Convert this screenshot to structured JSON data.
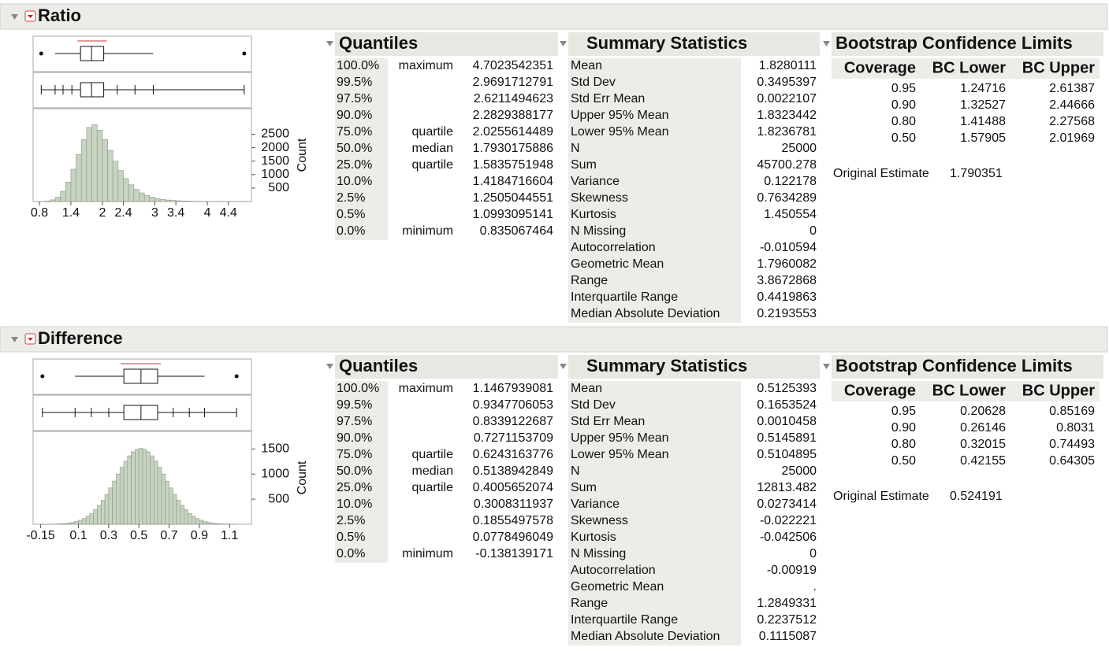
{
  "sections": [
    {
      "title": "Ratio",
      "histogram": {
        "type": "histogram",
        "bins": [
          0.8,
          0.9,
          1.0,
          1.1,
          1.2,
          1.3,
          1.4,
          1.5,
          1.6,
          1.7,
          1.8,
          1.9,
          2.0,
          2.1,
          2.2,
          2.3,
          2.4,
          2.5,
          2.6,
          2.7,
          2.8,
          2.9,
          3.0,
          3.1,
          3.2,
          3.3,
          3.4,
          3.5,
          3.6,
          3.7,
          3.8,
          3.9,
          4.0,
          4.1,
          4.2,
          4.3,
          4.4,
          4.5,
          4.6,
          4.7,
          4.8
        ],
        "counts": [
          5,
          20,
          60,
          160,
          380,
          720,
          1200,
          1750,
          2300,
          2750,
          2850,
          2650,
          2300,
          1900,
          1500,
          1150,
          850,
          620,
          450,
          320,
          230,
          160,
          110,
          80,
          55,
          40,
          28,
          20,
          14,
          10,
          7,
          5,
          4,
          3,
          2,
          2,
          1,
          1,
          1,
          1
        ],
        "xlim": [
          0.68,
          4.84
        ],
        "xticks": [
          0.8,
          1.4,
          2,
          2.4,
          3,
          3.4,
          4,
          4.4
        ],
        "ylim": [
          0,
          3450
        ],
        "yticks": [
          500,
          1000,
          1500,
          2000,
          2500
        ],
        "ylabel": "Count",
        "color": "#c8d3c1"
      },
      "quantiles": {
        "title": "Quantiles",
        "rows": [
          {
            "pct": "100.0%",
            "label": "maximum",
            "value": "4.7023542351"
          },
          {
            "pct": "99.5%",
            "value": "2.9691712791"
          },
          {
            "pct": "97.5%",
            "value": "2.6211494623"
          },
          {
            "pct": "90.0%",
            "value": "2.2829388177"
          },
          {
            "pct": "75.0%",
            "label": "quartile",
            "value": "2.0255614489"
          },
          {
            "pct": "50.0%",
            "label": "median",
            "value": "1.7930175886"
          },
          {
            "pct": "25.0%",
            "label": "quartile",
            "value": "1.5835751948"
          },
          {
            "pct": "10.0%",
            "value": "1.4184716604"
          },
          {
            "pct": "2.5%",
            "value": "1.2505044551"
          },
          {
            "pct": "0.5%",
            "value": "1.0993095141"
          },
          {
            "pct": "0.0%",
            "label": "minimum",
            "value": "0.835067464"
          }
        ]
      },
      "summary": {
        "title": "Summary Statistics",
        "rows": [
          [
            "Mean",
            "1.8280111"
          ],
          [
            "Std Dev",
            "0.3495397"
          ],
          [
            "Std Err Mean",
            "0.0022107"
          ],
          [
            "Upper 95% Mean",
            "1.8323442"
          ],
          [
            "Lower 95% Mean",
            "1.8236781"
          ],
          [
            "N",
            "25000"
          ],
          [
            "Sum",
            "45700.278"
          ],
          [
            "Variance",
            "0.122178"
          ],
          [
            "Skewness",
            "0.7634289"
          ],
          [
            "Kurtosis",
            "1.450554"
          ],
          [
            "N Missing",
            "0"
          ],
          [
            "Autocorrelation",
            "-0.010594"
          ],
          [
            "Geometric Mean",
            "1.7960082"
          ],
          [
            "Range",
            "3.8672868"
          ],
          [
            "Interquartile Range",
            "0.4419863"
          ],
          [
            "Median Absolute Deviation",
            "0.2193553"
          ]
        ]
      },
      "bootstrap": {
        "title": "Bootstrap Confidence Limits",
        "headers": [
          "Coverage",
          "BC Lower",
          "BC Upper"
        ],
        "rows": [
          [
            "0.95",
            "1.24716",
            "2.61387"
          ],
          [
            "0.90",
            "1.32527",
            "2.44666"
          ],
          [
            "0.80",
            "1.41488",
            "2.27568"
          ],
          [
            "0.50",
            "1.57905",
            "2.01969"
          ]
        ],
        "original_estimate": [
          "Original Estimate",
          "1.790351"
        ]
      }
    },
    {
      "title": "Difference",
      "histogram": {
        "type": "histogram",
        "bins": [
          -0.15,
          -0.125,
          -0.1,
          -0.075,
          -0.05,
          -0.025,
          0,
          0.025,
          0.05,
          0.075,
          0.1,
          0.125,
          0.15,
          0.175,
          0.2,
          0.225,
          0.25,
          0.275,
          0.3,
          0.325,
          0.35,
          0.375,
          0.4,
          0.425,
          0.45,
          0.475,
          0.5,
          0.525,
          0.55,
          0.575,
          0.6,
          0.625,
          0.65,
          0.675,
          0.7,
          0.725,
          0.75,
          0.775,
          0.8,
          0.825,
          0.85,
          0.875,
          0.9,
          0.925,
          0.95,
          0.975,
          1.0,
          1.025,
          1.05,
          1.075,
          1.1,
          1.125,
          1.15
        ],
        "counts": [
          1,
          1,
          2,
          4,
          6,
          10,
          15,
          24,
          37,
          54,
          80,
          114,
          159,
          217,
          290,
          376,
          479,
          596,
          724,
          860,
          1000,
          1134,
          1257,
          1363,
          1443,
          1494,
          1511,
          1494,
          1443,
          1363,
          1257,
          1134,
          1000,
          860,
          724,
          596,
          479,
          376,
          290,
          217,
          159,
          114,
          80,
          54,
          37,
          24,
          15,
          10,
          6,
          4,
          2,
          1
        ],
        "xlim": [
          -0.2,
          1.245
        ],
        "xticks": [
          -0.15,
          0.1,
          0.3,
          0.5,
          0.7,
          0.9,
          1.1
        ],
        "ylim": [
          0,
          1850
        ],
        "yticks": [
          500,
          1000,
          1500
        ],
        "ylabel": "Count",
        "color": "#c8d3c1"
      },
      "quantiles": {
        "title": "Quantiles",
        "rows": [
          {
            "pct": "100.0%",
            "label": "maximum",
            "value": "1.1467939081"
          },
          {
            "pct": "99.5%",
            "value": "0.9347706053"
          },
          {
            "pct": "97.5%",
            "value": "0.8339122687"
          },
          {
            "pct": "90.0%",
            "value": "0.7271153709"
          },
          {
            "pct": "75.0%",
            "label": "quartile",
            "value": "0.6243163776"
          },
          {
            "pct": "50.0%",
            "label": "median",
            "value": "0.5138942849"
          },
          {
            "pct": "25.0%",
            "label": "quartile",
            "value": "0.4005652074"
          },
          {
            "pct": "10.0%",
            "value": "0.3008311937"
          },
          {
            "pct": "2.5%",
            "value": "0.1855497578"
          },
          {
            "pct": "0.5%",
            "value": "0.0778496049"
          },
          {
            "pct": "0.0%",
            "label": "minimum",
            "value": "-0.138139171"
          }
        ]
      },
      "summary": {
        "title": "Summary Statistics",
        "rows": [
          [
            "Mean",
            "0.5125393"
          ],
          [
            "Std Dev",
            "0.1653524"
          ],
          [
            "Std Err Mean",
            "0.0010458"
          ],
          [
            "Upper 95% Mean",
            "0.5145891"
          ],
          [
            "Lower 95% Mean",
            "0.5104895"
          ],
          [
            "N",
            "25000"
          ],
          [
            "Sum",
            "12813.482"
          ],
          [
            "Variance",
            "0.0273414"
          ],
          [
            "Skewness",
            "-0.022221"
          ],
          [
            "Kurtosis",
            "-0.042506"
          ],
          [
            "N Missing",
            "0"
          ],
          [
            "Autocorrelation",
            "-0.00919"
          ],
          [
            "Geometric Mean",
            "."
          ],
          [
            "Range",
            "1.2849331"
          ],
          [
            "Interquartile Range",
            "0.2237512"
          ],
          [
            "Median Absolute Deviation",
            "0.1115087"
          ]
        ]
      },
      "bootstrap": {
        "title": "Bootstrap Confidence Limits",
        "headers": [
          "Coverage",
          "BC Lower",
          "BC Upper"
        ],
        "rows": [
          [
            "0.95",
            "0.20628",
            "0.85169"
          ],
          [
            "0.90",
            "0.26146",
            "0.8031"
          ],
          [
            "0.80",
            "0.32015",
            "0.74493"
          ],
          [
            "0.50",
            "0.42155",
            "0.64305"
          ]
        ],
        "original_estimate": [
          "Original Estimate",
          "0.524191"
        ]
      }
    }
  ]
}
